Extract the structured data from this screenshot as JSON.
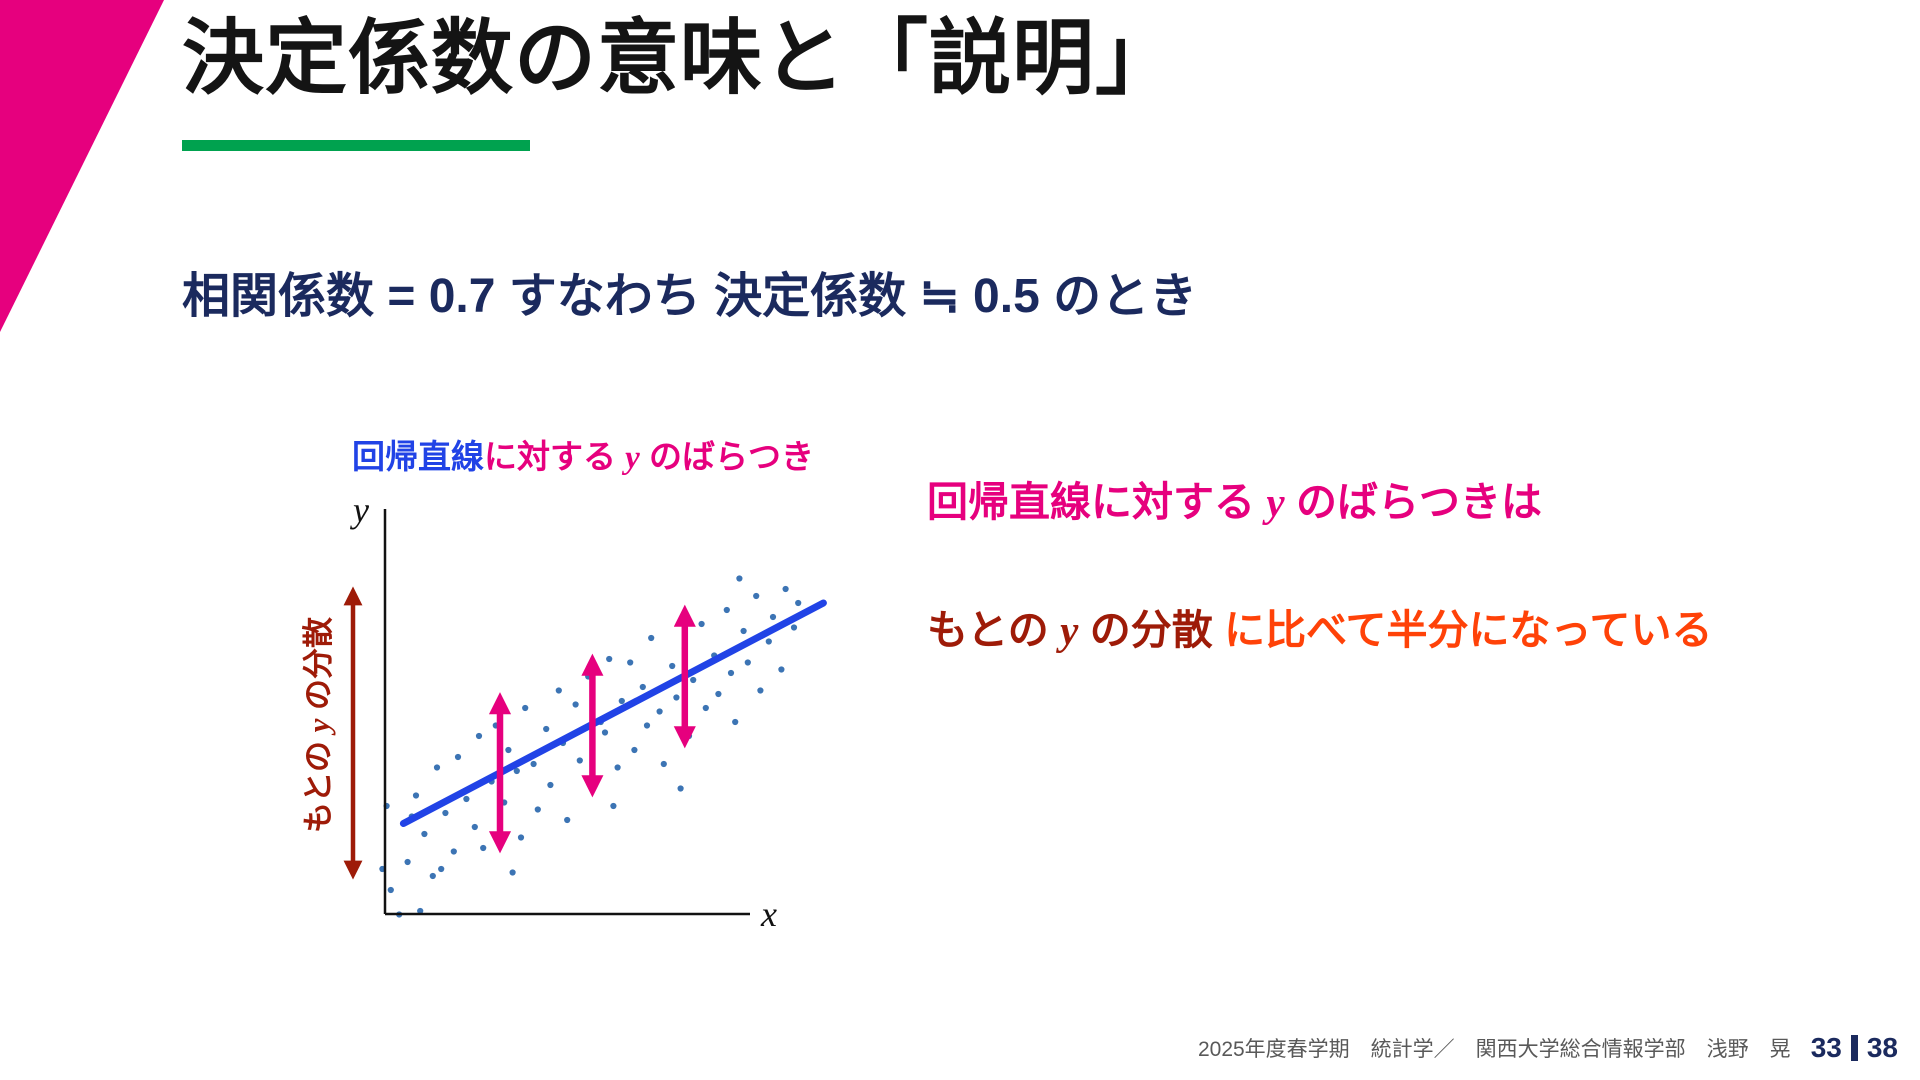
{
  "slide": {
    "title": "決定係数の意味と「説明」",
    "subtitle": "相関係数 = 0.7 すなわち 決定係数 ≒ 0.5 のとき",
    "chart_caption": {
      "regression_part": "回帰直線",
      "middle_part": "に対する ",
      "y_symbol": "y",
      "tail_part": " のばらつき"
    },
    "plot": {
      "x_axis_label": "x",
      "y_axis_label": "y"
    },
    "variance_label": {
      "lead": "もとの ",
      "y_symbol": "y",
      "tail": " の分散"
    },
    "right_text": {
      "line1_lead": "回帰直線に対する ",
      "line1_y": "y",
      "line1_tail": " のばらつきは",
      "line2_lead": "もとの ",
      "line2_y": "y",
      "line2_mid": " の分散",
      "line2_tail": " に比べて半分になっている"
    },
    "footer": {
      "credit": "2025年度春学期　統計学／　関西大学総合情報学部　浅野　晃",
      "page_current": "33",
      "page_total": "38"
    }
  },
  "colors": {
    "corner_pink": "#e6007e",
    "underline_green": "#00a24f",
    "subtitle_navy": "#1b2a5e",
    "regression_blue": "#2143e6",
    "caption_blue": "#2143e6",
    "magenta": "#e6007e",
    "dark_red": "#9e1b08",
    "orange_red": "#ff4208",
    "point_blue": "#3c74b4",
    "footer_gray": "#595959"
  },
  "chart_data": {
    "type": "scatter",
    "title": "回帰直線に対する y のばらつき",
    "xlabel": "x",
    "ylabel": "y",
    "xlim": [
      -0.5,
      10.5
    ],
    "ylim": [
      -0.5,
      10.5
    ],
    "grid": false,
    "legend": false,
    "points": [
      [
        0.3,
        1.2
      ],
      [
        0.5,
        3.1
      ],
      [
        0.7,
        2.0
      ],
      [
        0.9,
        0.8
      ],
      [
        1.0,
        3.9
      ],
      [
        1.2,
        2.6
      ],
      [
        1.4,
        1.5
      ],
      [
        1.5,
        4.2
      ],
      [
        1.7,
        3.0
      ],
      [
        1.9,
        2.2
      ],
      [
        2.0,
        4.8
      ],
      [
        2.1,
        1.6
      ],
      [
        2.3,
        3.5
      ],
      [
        2.4,
        5.1
      ],
      [
        2.6,
        2.9
      ],
      [
        2.7,
        4.4
      ],
      [
        2.9,
        3.8
      ],
      [
        3.0,
        1.9
      ],
      [
        3.1,
        5.6
      ],
      [
        3.3,
        4.0
      ],
      [
        3.4,
        2.7
      ],
      [
        3.6,
        5.0
      ],
      [
        3.7,
        3.4
      ],
      [
        3.9,
        6.1
      ],
      [
        4.0,
        4.6
      ],
      [
        4.1,
        2.4
      ],
      [
        4.3,
        5.7
      ],
      [
        4.4,
        4.1
      ],
      [
        4.6,
        6.5
      ],
      [
        4.7,
        3.6
      ],
      [
        4.9,
        5.2
      ],
      [
        5.0,
        4.9
      ],
      [
        5.1,
        7.0
      ],
      [
        5.3,
        3.9
      ],
      [
        5.4,
        5.8
      ],
      [
        5.6,
        6.9
      ],
      [
        5.7,
        4.4
      ],
      [
        5.9,
        6.2
      ],
      [
        6.0,
        5.1
      ],
      [
        6.1,
        7.6
      ],
      [
        6.3,
        5.5
      ],
      [
        6.4,
        4.0
      ],
      [
        6.6,
        6.8
      ],
      [
        6.7,
        5.9
      ],
      [
        6.9,
        7.3
      ],
      [
        7.0,
        4.8
      ],
      [
        7.1,
        6.4
      ],
      [
        7.3,
        8.0
      ],
      [
        7.4,
        5.6
      ],
      [
        7.6,
        7.1
      ],
      [
        7.7,
        6.0
      ],
      [
        7.9,
        8.4
      ],
      [
        8.0,
        6.6
      ],
      [
        8.1,
        5.2
      ],
      [
        8.3,
        7.8
      ],
      [
        8.4,
        6.9
      ],
      [
        8.6,
        8.8
      ],
      [
        8.7,
        6.1
      ],
      [
        8.9,
        7.5
      ],
      [
        9.0,
        8.2
      ],
      [
        9.2,
        6.7
      ],
      [
        9.3,
        9.0
      ],
      [
        9.5,
        7.9
      ],
      [
        9.6,
        8.6
      ],
      [
        0.4,
        2.5
      ],
      [
        1.1,
        1.0
      ],
      [
        2.8,
        0.9
      ],
      [
        5.2,
        2.8
      ],
      [
        6.8,
        3.3
      ],
      [
        8.2,
        9.3
      ],
      [
        -0.3,
        1.0
      ],
      [
        -0.2,
        2.8
      ],
      [
        0.1,
        -0.3
      ],
      [
        0.6,
        -0.2
      ],
      [
        -0.1,
        0.4
      ]
    ],
    "regression_line": {
      "x1": 0.2,
      "y1": 2.3,
      "x2": 10.2,
      "y2": 8.6
    },
    "residual_arrows": [
      {
        "x": 2.5,
        "y_from": 1.7,
        "y_to": 5.8
      },
      {
        "x": 4.7,
        "y_from": 3.3,
        "y_to": 6.9
      },
      {
        "x": 6.9,
        "y_from": 4.7,
        "y_to": 8.3
      }
    ],
    "variance_arrow_label": "もとの y の分散"
  }
}
